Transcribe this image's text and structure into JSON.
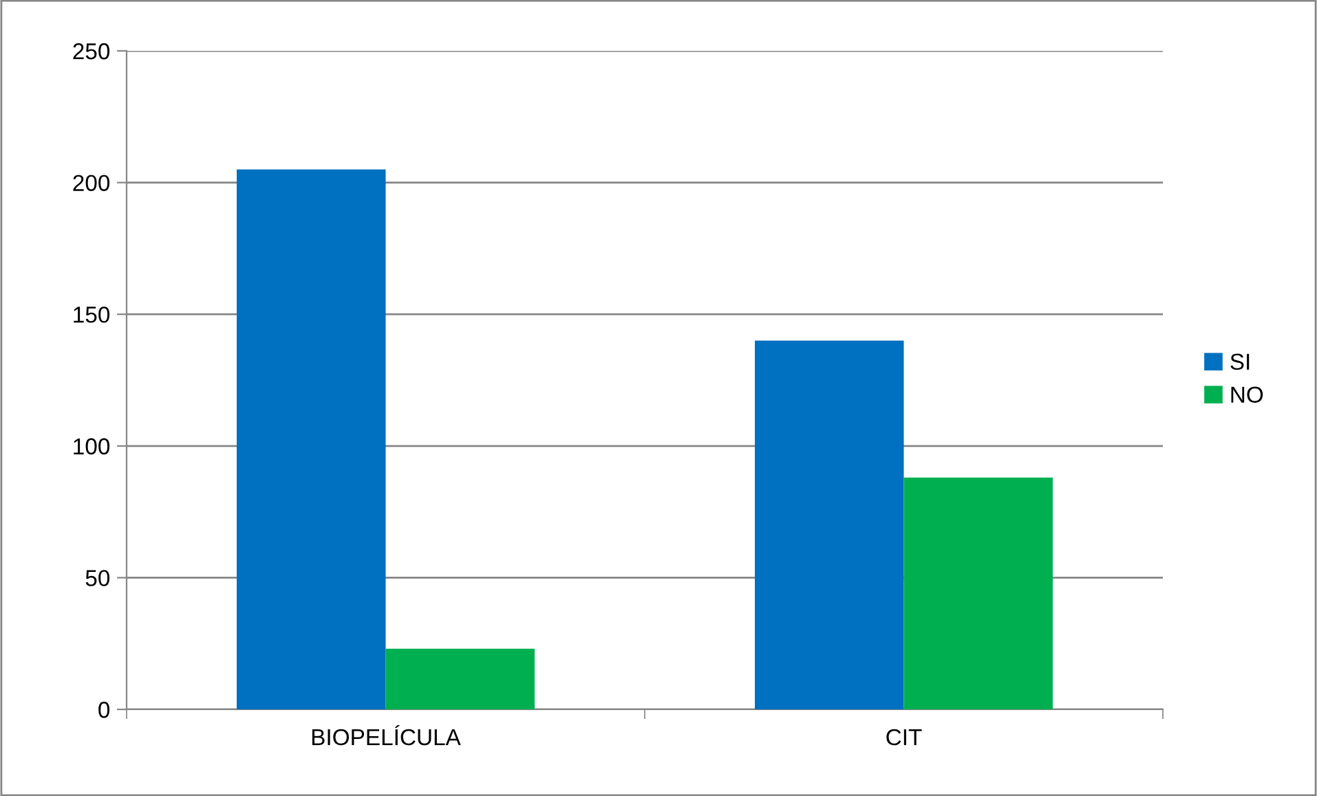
{
  "chart_data": {
    "type": "bar",
    "categories": [
      "BIOPELÍCULA",
      "CIT"
    ],
    "series": [
      {
        "name": "SI",
        "color": "#0070c0",
        "values": [
          205,
          140
        ]
      },
      {
        "name": "NO",
        "color": "#00b050",
        "values": [
          23,
          88
        ]
      }
    ],
    "ylim": [
      0,
      250
    ],
    "yticks": [
      0,
      50,
      100,
      150,
      200,
      250
    ],
    "grid": "y",
    "legend": "right"
  }
}
